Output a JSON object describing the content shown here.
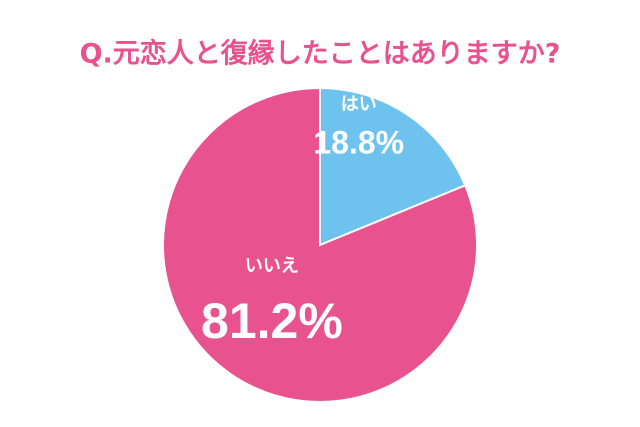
{
  "chart_data": {
    "type": "pie",
    "title": "Q.元恋人と復縁したことはありますか?",
    "categories": [
      "はい",
      "いいえ"
    ],
    "values": [
      18.8,
      81.2
    ],
    "value_labels": [
      "18.8%",
      "81.2%"
    ],
    "colors": [
      "#6ec3ee",
      "#e8528f"
    ]
  }
}
